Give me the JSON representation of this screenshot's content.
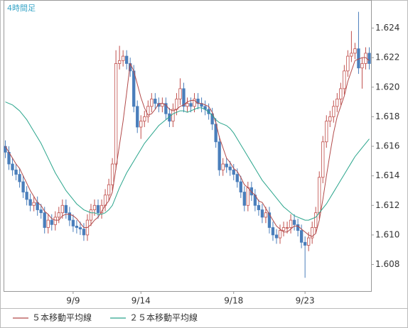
{
  "chart_data": {
    "type": "candlestick",
    "title": "4時間足",
    "categories": [
      null,
      null,
      null,
      null,
      null,
      null,
      null,
      null,
      null,
      null,
      null,
      null,
      null,
      null,
      null,
      null,
      null,
      null,
      null,
      "9/9",
      null,
      null,
      null,
      null,
      null,
      null,
      null,
      null,
      null,
      null,
      null,
      null,
      null,
      null,
      null,
      null,
      null,
      null,
      "9/14",
      null,
      null,
      null,
      null,
      null,
      null,
      null,
      null,
      null,
      null,
      null,
      null,
      null,
      null,
      null,
      null,
      null,
      null,
      null,
      null,
      null,
      null,
      null,
      null,
      null,
      "9/18",
      null,
      null,
      null,
      null,
      null,
      null,
      null,
      null,
      null,
      null,
      null,
      null,
      null,
      null,
      null,
      null,
      null,
      null,
      null,
      "9/23",
      null,
      null,
      null,
      null,
      null,
      null,
      null,
      null,
      null,
      null,
      null,
      null,
      null,
      null,
      null,
      null,
      null,
      null
    ],
    "open": [
      1.616,
      1.6156,
      1.6148,
      1.6144,
      1.6141,
      1.6136,
      1.6129,
      1.6124,
      1.612,
      1.6122,
      1.6117,
      1.6115,
      1.6105,
      1.611,
      1.6107,
      1.6112,
      1.6115,
      1.612,
      1.6115,
      1.611,
      1.6106,
      1.6105,
      1.6104,
      1.61,
      1.611,
      1.6117,
      1.612,
      1.6115,
      1.612,
      1.6127,
      1.6134,
      1.6148,
      1.6216,
      1.6218,
      1.6221,
      1.6216,
      1.6211,
      1.6187,
      1.6173,
      1.6177,
      1.618,
      1.6187,
      1.6192,
      1.6189,
      1.6187,
      1.6189,
      1.6182,
      1.6177,
      1.6185,
      1.6192,
      1.6199,
      1.6187,
      1.6189,
      1.6187,
      1.6192,
      1.6189,
      1.6187,
      1.6185,
      1.6182,
      1.6175,
      1.6163,
      1.6144,
      1.6148,
      1.6146,
      1.6144,
      1.6141,
      1.6136,
      1.6129,
      1.612,
      1.6132,
      1.6127,
      1.612,
      1.6117,
      1.6112,
      1.6115,
      1.6105,
      1.61,
      1.6098,
      1.6103,
      1.6105,
      1.6105,
      1.611,
      1.6107,
      1.6103,
      1.6095,
      1.6093,
      1.6098,
      1.6105,
      1.6115,
      1.6139,
      1.6163,
      1.6177,
      1.618,
      1.6187,
      1.6192,
      1.6199,
      1.6211,
      1.6221,
      1.6223,
      1.6226,
      1.6213,
      1.6216,
      1.6223
    ],
    "high": [
      1.6164,
      1.616,
      1.6152,
      1.6148,
      1.6145,
      1.614,
      1.6133,
      1.6128,
      1.6126,
      1.6126,
      1.6121,
      1.6119,
      1.6114,
      1.6114,
      1.6116,
      1.6119,
      1.6124,
      1.6124,
      1.6119,
      1.6114,
      1.611,
      1.6109,
      1.6108,
      1.6114,
      1.6121,
      1.6124,
      1.6124,
      1.6124,
      1.6131,
      1.6138,
      1.6152,
      1.6225,
      1.6228,
      1.6225,
      1.6225,
      1.622,
      1.6215,
      1.6191,
      1.6181,
      1.6184,
      1.6191,
      1.6196,
      1.6196,
      1.6193,
      1.6193,
      1.6193,
      1.6186,
      1.6189,
      1.6196,
      1.6206,
      1.6203,
      1.6193,
      1.6193,
      1.6196,
      1.6196,
      1.6193,
      1.6191,
      1.6189,
      1.6186,
      1.6179,
      1.6167,
      1.6152,
      1.6152,
      1.615,
      1.6148,
      1.6145,
      1.614,
      1.6133,
      1.6136,
      1.6136,
      1.6131,
      1.6124,
      1.6121,
      1.6119,
      1.6119,
      1.6109,
      1.6104,
      1.6107,
      1.6109,
      1.6109,
      1.6114,
      1.6114,
      1.6111,
      1.6107,
      1.6099,
      1.6102,
      1.6109,
      1.6119,
      1.6143,
      1.6167,
      1.6181,
      1.6184,
      1.6191,
      1.6196,
      1.6203,
      1.6215,
      1.6225,
      1.6238,
      1.623,
      1.6251,
      1.622,
      1.6227,
      1.6227
    ],
    "low": [
      1.6152,
      1.6144,
      1.614,
      1.6137,
      1.6132,
      1.6125,
      1.612,
      1.6116,
      1.6116,
      1.6113,
      1.6111,
      1.6101,
      1.6101,
      1.6103,
      1.6103,
      1.6108,
      1.6111,
      1.6111,
      1.6106,
      1.6102,
      1.6101,
      1.61,
      1.6096,
      1.6096,
      1.6106,
      1.6113,
      1.6111,
      1.6111,
      1.6116,
      1.6123,
      1.613,
      1.6144,
      1.6212,
      1.6214,
      1.6212,
      1.6207,
      1.6183,
      1.6169,
      1.6165,
      1.6173,
      1.6176,
      1.6183,
      1.6185,
      1.6183,
      1.6183,
      1.6178,
      1.6173,
      1.6173,
      1.6181,
      1.6188,
      1.6183,
      1.6183,
      1.6183,
      1.6183,
      1.6185,
      1.6183,
      1.6181,
      1.6178,
      1.6171,
      1.6159,
      1.614,
      1.614,
      1.6142,
      1.614,
      1.6137,
      1.6132,
      1.6125,
      1.6116,
      1.6116,
      1.6123,
      1.6116,
      1.6113,
      1.6108,
      1.6108,
      1.6101,
      1.6096,
      1.6094,
      1.6094,
      1.6099,
      1.6101,
      1.6101,
      1.6103,
      1.6099,
      1.6091,
      1.6071,
      1.6089,
      1.6094,
      1.6101,
      1.6111,
      1.6135,
      1.6159,
      1.6173,
      1.6176,
      1.6183,
      1.6188,
      1.6195,
      1.6207,
      1.6217,
      1.6219,
      1.6209,
      1.6199,
      1.6212,
      1.6212
    ],
    "close": [
      1.6156,
      1.6148,
      1.6144,
      1.6141,
      1.6136,
      1.6129,
      1.6124,
      1.612,
      1.6122,
      1.6117,
      1.6115,
      1.6105,
      1.611,
      1.6107,
      1.6112,
      1.6115,
      1.612,
      1.6115,
      1.611,
      1.6106,
      1.6105,
      1.6104,
      1.61,
      1.611,
      1.6117,
      1.612,
      1.6115,
      1.612,
      1.6127,
      1.6134,
      1.6148,
      1.6216,
      1.6218,
      1.6221,
      1.6216,
      1.6211,
      1.6187,
      1.6173,
      1.6177,
      1.618,
      1.6187,
      1.6192,
      1.6189,
      1.6187,
      1.6189,
      1.6182,
      1.6177,
      1.6185,
      1.6192,
      1.6199,
      1.6187,
      1.6189,
      1.6187,
      1.6192,
      1.6189,
      1.6187,
      1.6185,
      1.6182,
      1.6175,
      1.6163,
      1.6144,
      1.6148,
      1.6146,
      1.6144,
      1.6141,
      1.6136,
      1.6129,
      1.612,
      1.6132,
      1.6127,
      1.612,
      1.6117,
      1.6112,
      1.6115,
      1.6105,
      1.61,
      1.6098,
      1.6103,
      1.6105,
      1.6105,
      1.611,
      1.6107,
      1.6103,
      1.6095,
      1.6093,
      1.6098,
      1.6105,
      1.6115,
      1.6139,
      1.6163,
      1.6177,
      1.618,
      1.6187,
      1.6192,
      1.6199,
      1.6211,
      1.6221,
      1.6223,
      1.6226,
      1.6213,
      1.6216,
      1.6223,
      1.6216
    ],
    "up_color": "#c0504d",
    "down_color": "#4a7ebb",
    "series": [
      {
        "name": "５本移動平均線",
        "color": "#b24a4a",
        "values": [
          1.616,
          1.6156,
          1.6152,
          1.6148,
          1.6145,
          1.614,
          1.6135,
          1.613,
          1.6126,
          1.6122,
          1.612,
          1.6116,
          1.6114,
          1.6111,
          1.611,
          1.611,
          1.6113,
          1.6114,
          1.6114,
          1.6113,
          1.6111,
          1.6108,
          1.6105,
          1.6105,
          1.6107,
          1.611,
          1.6112,
          1.6116,
          1.612,
          1.6123,
          1.6129,
          1.6145,
          1.6161,
          1.6177,
          1.6196,
          1.6216,
          1.6211,
          1.6202,
          1.6193,
          1.6186,
          1.6181,
          1.6182,
          1.6185,
          1.6189,
          1.6189,
          1.6188,
          1.6185,
          1.6184,
          1.6185,
          1.6187,
          1.6188,
          1.619,
          1.6191,
          1.6191,
          1.6189,
          1.6189,
          1.6188,
          1.6187,
          1.6183,
          1.6176,
          1.6166,
          1.6159,
          1.6152,
          1.6149,
          1.6145,
          1.6143,
          1.6139,
          1.6134,
          1.6132,
          1.6129,
          1.6127,
          1.6123,
          1.6122,
          1.6118,
          1.6114,
          1.611,
          1.6106,
          1.6104,
          1.6102,
          1.6102,
          1.6104,
          1.6106,
          1.6106,
          1.6104,
          1.6102,
          1.61,
          1.6099,
          1.6101,
          1.611,
          1.6124,
          1.614,
          1.6155,
          1.6169,
          1.618,
          1.6187,
          1.6194,
          1.6204,
          1.6211,
          1.6218,
          1.6219,
          1.622,
          1.622,
          1.6218
        ]
      },
      {
        "name": "２５本移動平均線",
        "color": "#2aa58c",
        "values": [
          1.619,
          1.6189,
          1.6188,
          1.6186,
          1.6184,
          1.6181,
          1.6178,
          1.6174,
          1.617,
          1.6166,
          1.6162,
          1.6157,
          1.6152,
          1.6147,
          1.6142,
          1.6138,
          1.6134,
          1.613,
          1.6127,
          1.6124,
          1.6121,
          1.6119,
          1.6117,
          1.6116,
          1.6115,
          1.6115,
          1.6114,
          1.6114,
          1.6115,
          1.6117,
          1.612,
          1.6126,
          1.6132,
          1.6137,
          1.6142,
          1.6146,
          1.615,
          1.6154,
          1.6158,
          1.6162,
          1.6165,
          1.6168,
          1.6171,
          1.6174,
          1.6176,
          1.6178,
          1.618,
          1.6182,
          1.6183,
          1.6184,
          1.6184,
          1.6183,
          1.6184,
          1.6185,
          1.6186,
          1.6186,
          1.6185,
          1.6183,
          1.6181,
          1.6178,
          1.6176,
          1.6175,
          1.6174,
          1.6172,
          1.6169,
          1.6165,
          1.6161,
          1.6157,
          1.6153,
          1.6149,
          1.6145,
          1.6141,
          1.6137,
          1.6134,
          1.6131,
          1.6128,
          1.6125,
          1.6122,
          1.6119,
          1.6117,
          1.6115,
          1.6113,
          1.6112,
          1.6111,
          1.611,
          1.611,
          1.6111,
          1.6112,
          1.6115,
          1.6118,
          1.6121,
          1.6125,
          1.6129,
          1.6133,
          1.6137,
          1.6141,
          1.6145,
          1.6149,
          1.6153,
          1.6156,
          1.6159,
          1.6162,
          1.6165
        ]
      }
    ],
    "ylim": [
      1.6062,
      1.6259
    ],
    "yticks": [
      1.608,
      {
        "value": 1.61,
        "label": "1.610"
      },
      1.612,
      1.614,
      1.616,
      1.618,
      {
        "value": 1.62,
        "label": "1.620"
      },
      1.622,
      1.624
    ],
    "grid": false
  }
}
